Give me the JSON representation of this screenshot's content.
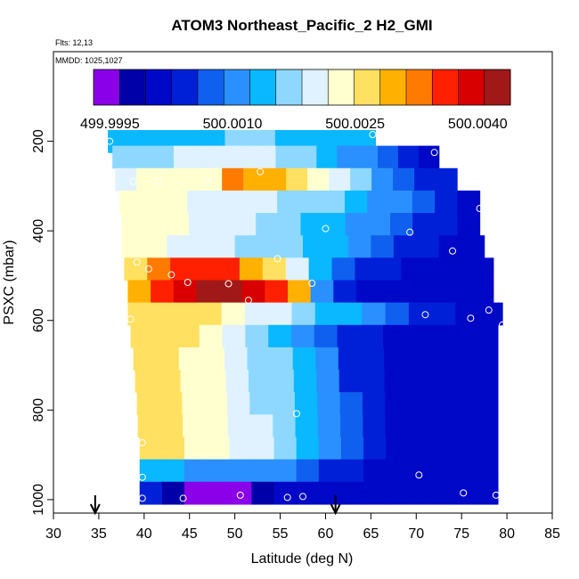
{
  "chart_data": {
    "type": "heatmap",
    "title": "ATOM3 Northeast_Pacific_2 H2_GMI",
    "subtitle_lines": [
      "Flts: 12,13",
      "MMDD: 1025,1027"
    ],
    "xlabel": "Latitude (deg N)",
    "ylabel": "PSXC (mbar)",
    "xlim": [
      30,
      85
    ],
    "ylim": [
      1030,
      0
    ],
    "x_ticks": [
      30,
      35,
      40,
      45,
      50,
      55,
      60,
      65,
      70,
      75,
      80,
      85
    ],
    "y_ticks": [
      200,
      400,
      600,
      800,
      1000
    ],
    "colorbar": {
      "min": 499.9993,
      "max": 500.0044,
      "tick_labels": [
        "499.9995",
        "500.0010",
        "500.0025",
        "500.0040"
      ],
      "tick_values": [
        499.9995,
        500.001,
        500.0025,
        500.004
      ],
      "colors": [
        "#8a00e8",
        "#0000a8",
        "#0008c8",
        "#0020d8",
        "#1060f0",
        "#2a90ff",
        "#0ab8ff",
        "#8ed8ff",
        "#e0f2ff",
        "#ffffd0",
        "#ffe060",
        "#ffb000",
        "#ff7a00",
        "#ff2000",
        "#d80000",
        "#a01818"
      ]
    },
    "series": [
      {
        "p": 200,
        "lat_min": 36,
        "lat_max": 65.5,
        "values": [
          500.0013,
          500.0013,
          500.0014,
          500.0014,
          500.0015,
          500.0015,
          500.0015,
          500.0016,
          500.0016,
          500.0016,
          500.0015,
          500.0015,
          500.0014,
          500.0014,
          500.0013,
          500.0013
        ]
      },
      {
        "p": 235,
        "lat_min": 36.5,
        "lat_max": 72.5,
        "values": [
          500.0017,
          500.0018,
          500.0018,
          500.0019,
          500.0019,
          500.002,
          500.002,
          500.0019,
          500.0018,
          500.0016,
          500.0014,
          500.0012,
          500.001,
          500.0007,
          500.0004,
          500.0002
        ]
      },
      {
        "p": 285,
        "lat_min": 36.8,
        "lat_max": 74.5,
        "values": [
          500.002,
          500.0022,
          500.0023,
          500.0023,
          500.0024,
          500.0032,
          500.0031,
          500.003,
          500.0026,
          500.0022,
          500.0019,
          500.0016,
          500.0012,
          500.0008,
          500.0005,
          500.0003
        ]
      },
      {
        "p": 335,
        "lat_min": 37.3,
        "lat_max": 77.0,
        "values": [
          500.0022,
          500.0022,
          500.0022,
          500.0021,
          500.0021,
          500.002,
          500.0019,
          500.0018,
          500.0017,
          500.0016,
          500.0014,
          500.0012,
          500.001,
          500.0007,
          500.0004,
          500.0002
        ]
      },
      {
        "p": 385,
        "lat_min": 37.5,
        "lat_max": 77.0,
        "values": [
          500.0023,
          500.0023,
          500.0022,
          500.0021,
          500.002,
          500.0019,
          500.0018,
          500.0017,
          500.0015,
          500.0013,
          500.0011,
          500.0009,
          500.0007,
          500.0005,
          500.0003,
          500.0002
        ]
      },
      {
        "p": 435,
        "lat_min": 37.5,
        "lat_max": 77.5,
        "values": [
          500.0023,
          500.0022,
          500.0021,
          500.002,
          500.0019,
          500.0018,
          500.0017,
          500.0016,
          500.0015,
          500.0013,
          500.0011,
          500.0008,
          500.0005,
          500.0003,
          500.0002,
          500.0002
        ]
      },
      {
        "p": 485,
        "lat_min": 37.8,
        "lat_max": 78.5,
        "values": [
          500.0028,
          500.0033,
          500.0036,
          500.0037,
          500.0035,
          500.003,
          500.0025,
          500.002,
          500.0015,
          500.0008,
          500.0005,
          500.0003,
          500.0002,
          500.0002,
          500.0002,
          500.0002
        ]
      },
      {
        "p": 535,
        "lat_min": 38.2,
        "lat_max": 78.5,
        "values": [
          500.003,
          500.0035,
          500.0039,
          500.0043,
          500.0044,
          500.004,
          500.0037,
          500.0031,
          500.0012,
          500.0003,
          500.0002,
          500.0002,
          500.0002,
          500.0002,
          500.0002,
          500.0002
        ]
      },
      {
        "p": 585,
        "lat_min": 38.2,
        "lat_max": 79.5,
        "values": [
          500.0028,
          500.0027,
          500.0026,
          500.0025,
          500.0023,
          500.0021,
          500.0019,
          500.0017,
          500.0015,
          500.0013,
          500.001,
          500.0007,
          500.0004,
          500.0003,
          500.0002,
          500.0002
        ]
      },
      {
        "p": 635,
        "lat_min": 38.5,
        "lat_max": 79.0,
        "values": [
          500.0027,
          500.0026,
          500.0025,
          500.0023,
          500.0021,
          500.0018,
          500.0015,
          500.0012,
          500.0008,
          500.0005,
          500.0003,
          500.0002,
          500.0002,
          500.0002,
          500.0002,
          500.0002
        ]
      },
      {
        "p": 685,
        "lat_min": 38.8,
        "lat_max": 79.0,
        "values": [
          500.0026,
          500.0025,
          500.0024,
          500.0022,
          500.002,
          500.0018,
          500.0016,
          500.0013,
          500.0009,
          500.0005,
          500.0003,
          500.0002,
          500.0002,
          500.0002,
          500.0002,
          500.0002
        ]
      },
      {
        "p": 735,
        "lat_min": 39.0,
        "lat_max": 79.0,
        "values": [
          500.0025,
          500.0025,
          500.0024,
          500.0022,
          500.002,
          500.0018,
          500.0016,
          500.0013,
          500.0009,
          500.0005,
          500.0003,
          500.0002,
          500.0002,
          500.0002,
          500.0002,
          500.0002
        ]
      },
      {
        "p": 785,
        "lat_min": 39.2,
        "lat_max": 79.0,
        "values": [
          500.0025,
          500.0025,
          500.0024,
          500.0022,
          500.002,
          500.0018,
          500.0016,
          500.0013,
          500.0009,
          500.0006,
          500.0003,
          500.0002,
          500.0002,
          500.0002,
          500.0002,
          500.0002
        ]
      },
      {
        "p": 835,
        "lat_min": 39.3,
        "lat_max": 79.0,
        "values": [
          500.0025,
          500.0025,
          500.0024,
          500.0023,
          500.0021,
          500.0019,
          500.0017,
          500.0014,
          500.001,
          500.0006,
          500.0003,
          500.0002,
          500.0002,
          500.0002,
          500.0002,
          500.0002
        ]
      },
      {
        "p": 885,
        "lat_min": 39.5,
        "lat_max": 79.0,
        "values": [
          500.0025,
          500.0025,
          500.0024,
          500.0023,
          500.0021,
          500.0019,
          500.0017,
          500.0014,
          500.001,
          500.0006,
          500.0003,
          500.0002,
          500.0002,
          500.0002,
          500.0002,
          500.0002
        ]
      },
      {
        "p": 935,
        "lat_min": 39.5,
        "lat_max": 79.0,
        "values": [
          500.0013,
          500.0013,
          500.0012,
          500.0012,
          500.0011,
          500.0011,
          500.001,
          500.0008,
          500.0005,
          500.0003,
          500.0002,
          500.0002,
          500.0002,
          500.0002,
          500.0002,
          500.0002
        ]
      },
      {
        "p": 985,
        "lat_min": 39.5,
        "lat_max": 79.0,
        "values": [
          500.0003,
          499.9998,
          499.9994,
          499.9993,
          499.9996,
          499.9999,
          500.0001,
          500.0002,
          500.0002,
          500.0002,
          500.0002,
          500.0002,
          500.0002,
          500.0002,
          500.0002,
          500.0002
        ]
      }
    ],
    "sample_points": [
      {
        "lat": 36.2,
        "p": 200
      },
      {
        "lat": 65.2,
        "p": 185
      },
      {
        "lat": 72.0,
        "p": 225
      },
      {
        "lat": 38.8,
        "p": 290
      },
      {
        "lat": 41.5,
        "p": 290
      },
      {
        "lat": 47.0,
        "p": 290
      },
      {
        "lat": 52.8,
        "p": 268
      },
      {
        "lat": 77.0,
        "p": 350
      },
      {
        "lat": 60.0,
        "p": 395
      },
      {
        "lat": 69.3,
        "p": 403
      },
      {
        "lat": 74.0,
        "p": 445
      },
      {
        "lat": 39.2,
        "p": 470
      },
      {
        "lat": 40.5,
        "p": 485
      },
      {
        "lat": 43.0,
        "p": 498
      },
      {
        "lat": 44.8,
        "p": 515
      },
      {
        "lat": 49.3,
        "p": 518
      },
      {
        "lat": 54.7,
        "p": 462
      },
      {
        "lat": 58.5,
        "p": 517
      },
      {
        "lat": 51.5,
        "p": 555
      },
      {
        "lat": 38.5,
        "p": 597
      },
      {
        "lat": 71.0,
        "p": 587
      },
      {
        "lat": 76.0,
        "p": 595
      },
      {
        "lat": 78.0,
        "p": 577
      },
      {
        "lat": 79.5,
        "p": 610
      },
      {
        "lat": 56.8,
        "p": 808
      },
      {
        "lat": 39.8,
        "p": 873
      },
      {
        "lat": 39.8,
        "p": 950
      },
      {
        "lat": 70.3,
        "p": 945
      },
      {
        "lat": 39.8,
        "p": 997
      },
      {
        "lat": 44.3,
        "p": 997
      },
      {
        "lat": 50.6,
        "p": 990
      },
      {
        "lat": 55.8,
        "p": 995
      },
      {
        "lat": 57.5,
        "p": 993
      },
      {
        "lat": 75.2,
        "p": 985
      },
      {
        "lat": 78.8,
        "p": 990
      }
    ],
    "arrows_lat": [
      34.6,
      61.1
    ]
  }
}
